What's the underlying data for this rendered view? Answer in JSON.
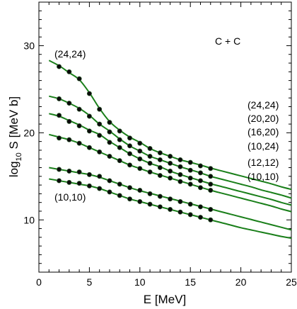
{
  "chart_data": {
    "type": "line",
    "title": "",
    "system_label": "C + C",
    "xlabel": "E [MeV]",
    "ylabel_main": "log",
    "ylabel_sub": "10",
    "ylabel_rest": " S [MeV b]",
    "xlim": [
      0,
      25
    ],
    "ylim": [
      4,
      35
    ],
    "xticks": [
      0,
      5,
      10,
      15,
      20,
      25
    ],
    "yticks": [
      10,
      20,
      30
    ],
    "grid": false,
    "legend": "right-side list of (l1,l2) labels",
    "colors": {
      "line": "#1a7f1a",
      "point": "#0a0a0a"
    },
    "top_curve_label": "(24,24)",
    "bottom_curve_label": "(10,10)",
    "right_labels": [
      "(24,24)",
      "(20,20)",
      "(16,20)",
      "(10,24)",
      "(12,12)",
      "(10,10)"
    ],
    "series": [
      {
        "name": "(24,24)",
        "curve": [
          [
            1,
            28.3
          ],
          [
            2,
            27.7
          ],
          [
            3,
            26.9
          ],
          [
            4,
            26.1
          ],
          [
            5,
            24.6
          ],
          [
            6,
            22.8
          ],
          [
            7,
            21.3
          ],
          [
            8,
            20.3
          ],
          [
            9,
            19.5
          ],
          [
            10,
            18.9
          ],
          [
            11,
            18.2
          ],
          [
            12,
            17.7
          ],
          [
            13,
            17.3
          ],
          [
            14,
            16.9
          ],
          [
            15,
            16.6
          ],
          [
            16,
            16.3
          ],
          [
            17,
            15.95
          ],
          [
            18,
            15.65
          ],
          [
            19,
            15.35
          ],
          [
            20,
            15.05
          ],
          [
            21,
            14.75
          ],
          [
            22,
            14.45
          ],
          [
            23,
            14.15
          ],
          [
            24,
            13.8
          ],
          [
            25,
            13.5
          ]
        ],
        "points": [
          [
            2,
            27.6
          ],
          [
            3,
            27.0
          ],
          [
            4,
            26.2
          ],
          [
            5,
            24.5
          ],
          [
            6,
            22.7
          ],
          [
            7,
            21.2
          ],
          [
            8,
            20.2
          ],
          [
            9,
            19.4
          ],
          [
            10,
            18.8
          ],
          [
            11,
            18.2
          ],
          [
            12,
            17.7
          ],
          [
            13,
            17.3
          ],
          [
            14,
            16.9
          ],
          [
            15,
            16.6
          ],
          [
            16,
            16.2
          ],
          [
            17,
            15.9
          ]
        ]
      },
      {
        "name": "(20,20)",
        "curve": [
          [
            1,
            24.2
          ],
          [
            2,
            23.9
          ],
          [
            3,
            23.4
          ],
          [
            4,
            22.8
          ],
          [
            5,
            22.0
          ],
          [
            6,
            21.0
          ],
          [
            7,
            20.2
          ],
          [
            8,
            19.3
          ],
          [
            9,
            18.5
          ],
          [
            10,
            17.9
          ],
          [
            11,
            17.3
          ],
          [
            12,
            16.9
          ],
          [
            13,
            16.5
          ],
          [
            14,
            16.1
          ],
          [
            15,
            15.75
          ],
          [
            16,
            15.4
          ],
          [
            17,
            15.0
          ],
          [
            18,
            14.7
          ],
          [
            19,
            14.4
          ],
          [
            20,
            14.1
          ],
          [
            21,
            13.8
          ],
          [
            22,
            13.45
          ],
          [
            23,
            13.15
          ],
          [
            24,
            12.85
          ],
          [
            25,
            12.5
          ]
        ],
        "points": [
          [
            2,
            23.9
          ],
          [
            3,
            23.4
          ],
          [
            4,
            22.7
          ],
          [
            5,
            21.9
          ],
          [
            6,
            21.0
          ],
          [
            7,
            20.1
          ],
          [
            8,
            19.2
          ],
          [
            9,
            18.5
          ],
          [
            10,
            17.9
          ],
          [
            11,
            17.3
          ],
          [
            12,
            16.9
          ],
          [
            13,
            16.5
          ],
          [
            14,
            16.1
          ],
          [
            15,
            15.7
          ],
          [
            16,
            15.4
          ],
          [
            17,
            15.0
          ]
        ]
      },
      {
        "name": "(16,20)",
        "curve": [
          [
            1,
            22.2
          ],
          [
            2,
            21.9
          ],
          [
            3,
            21.4
          ],
          [
            4,
            20.9
          ],
          [
            5,
            20.3
          ],
          [
            6,
            19.8
          ],
          [
            7,
            19.0
          ],
          [
            8,
            18.3
          ],
          [
            9,
            17.6
          ],
          [
            10,
            17.0
          ],
          [
            11,
            16.5
          ],
          [
            12,
            16.1
          ],
          [
            13,
            15.6
          ],
          [
            14,
            15.2
          ],
          [
            15,
            14.85
          ],
          [
            16,
            14.5
          ],
          [
            17,
            14.15
          ],
          [
            18,
            13.85
          ],
          [
            19,
            13.55
          ],
          [
            20,
            13.25
          ],
          [
            21,
            12.95
          ],
          [
            22,
            12.65
          ],
          [
            23,
            12.35
          ],
          [
            24,
            12.0
          ],
          [
            25,
            11.7
          ]
        ],
        "points": [
          [
            2,
            22.0
          ],
          [
            3,
            21.3
          ],
          [
            4,
            20.8
          ],
          [
            5,
            20.2
          ],
          [
            6,
            19.7
          ],
          [
            7,
            18.9
          ],
          [
            8,
            18.3
          ],
          [
            9,
            17.6
          ],
          [
            10,
            17.0
          ],
          [
            11,
            16.5
          ],
          [
            12,
            16.0
          ],
          [
            13,
            15.6
          ],
          [
            14,
            15.2
          ],
          [
            15,
            14.8
          ],
          [
            16,
            14.5
          ],
          [
            17,
            14.1
          ]
        ]
      },
      {
        "name": "(10,24)",
        "curve": [
          [
            1,
            19.8
          ],
          [
            2,
            19.5
          ],
          [
            3,
            19.2
          ],
          [
            4,
            18.8
          ],
          [
            5,
            18.3
          ],
          [
            6,
            17.8
          ],
          [
            7,
            17.3
          ],
          [
            8,
            16.8
          ],
          [
            9,
            16.3
          ],
          [
            10,
            15.9
          ],
          [
            11,
            15.5
          ],
          [
            12,
            15.15
          ],
          [
            13,
            14.8
          ],
          [
            14,
            14.45
          ],
          [
            15,
            14.1
          ],
          [
            16,
            13.75
          ],
          [
            17,
            13.4
          ],
          [
            18,
            13.1
          ],
          [
            19,
            12.8
          ],
          [
            20,
            12.5
          ],
          [
            21,
            12.2
          ],
          [
            22,
            11.9
          ],
          [
            23,
            11.6
          ],
          [
            24,
            11.25
          ],
          [
            25,
            10.95
          ]
        ],
        "points": [
          [
            2,
            19.4
          ],
          [
            3,
            19.2
          ],
          [
            4,
            18.8
          ],
          [
            5,
            18.3
          ],
          [
            6,
            17.8
          ],
          [
            7,
            17.3
          ],
          [
            8,
            16.8
          ],
          [
            9,
            16.3
          ],
          [
            10,
            15.9
          ],
          [
            11,
            15.5
          ],
          [
            12,
            15.1
          ],
          [
            13,
            14.8
          ],
          [
            14,
            14.4
          ],
          [
            15,
            14.1
          ],
          [
            16,
            13.7
          ],
          [
            17,
            13.4
          ]
        ]
      },
      {
        "name": "(12,12)",
        "curve": [
          [
            1,
            16.0
          ],
          [
            2,
            15.8
          ],
          [
            3,
            15.6
          ],
          [
            4,
            15.4
          ],
          [
            5,
            15.2
          ],
          [
            6,
            14.9
          ],
          [
            7,
            14.5
          ],
          [
            8,
            14.1
          ],
          [
            9,
            13.7
          ],
          [
            10,
            13.35
          ],
          [
            11,
            13.05
          ],
          [
            12,
            12.75
          ],
          [
            13,
            12.45
          ],
          [
            14,
            12.15
          ],
          [
            15,
            11.85
          ],
          [
            16,
            11.55
          ],
          [
            17,
            11.25
          ],
          [
            18,
            10.95
          ],
          [
            19,
            10.65
          ],
          [
            20,
            10.35
          ],
          [
            21,
            10.05
          ],
          [
            22,
            9.75
          ],
          [
            23,
            9.45
          ],
          [
            24,
            9.15
          ],
          [
            25,
            8.85
          ]
        ],
        "points": [
          [
            2,
            15.8
          ],
          [
            3,
            15.6
          ],
          [
            4,
            15.5
          ],
          [
            5,
            15.2
          ],
          [
            6,
            15.0
          ],
          [
            7,
            14.5
          ],
          [
            8,
            14.1
          ],
          [
            9,
            13.7
          ],
          [
            10,
            13.4
          ],
          [
            11,
            13.0
          ],
          [
            12,
            12.7
          ],
          [
            13,
            12.4
          ],
          [
            14,
            12.1
          ],
          [
            15,
            11.8
          ],
          [
            16,
            11.5
          ],
          [
            17,
            11.2
          ]
        ]
      },
      {
        "name": "(10,10)",
        "curve": [
          [
            1,
            14.7
          ],
          [
            2,
            14.5
          ],
          [
            3,
            14.3
          ],
          [
            4,
            14.1
          ],
          [
            5,
            13.9
          ],
          [
            6,
            13.6
          ],
          [
            7,
            13.2
          ],
          [
            8,
            12.8
          ],
          [
            9,
            12.4
          ],
          [
            10,
            12.1
          ],
          [
            11,
            11.8
          ],
          [
            12,
            11.5
          ],
          [
            13,
            11.2
          ],
          [
            14,
            10.9
          ],
          [
            15,
            10.6
          ],
          [
            16,
            10.3
          ],
          [
            17,
            10.0
          ],
          [
            18,
            9.7
          ],
          [
            19,
            9.4
          ],
          [
            20,
            9.1
          ],
          [
            21,
            8.85
          ],
          [
            22,
            8.6
          ],
          [
            23,
            8.35
          ],
          [
            24,
            8.1
          ],
          [
            25,
            7.9
          ]
        ],
        "points": [
          [
            2,
            14.5
          ],
          [
            3,
            14.3
          ],
          [
            4,
            14.2
          ],
          [
            5,
            13.9
          ],
          [
            6,
            13.6
          ],
          [
            7,
            13.2
          ],
          [
            8,
            12.8
          ],
          [
            9,
            12.4
          ],
          [
            10,
            12.1
          ],
          [
            11,
            11.8
          ],
          [
            12,
            11.5
          ],
          [
            13,
            11.2
          ],
          [
            14,
            10.9
          ],
          [
            15,
            10.6
          ],
          [
            16,
            10.3
          ],
          [
            17,
            10.0
          ]
        ]
      }
    ]
  }
}
